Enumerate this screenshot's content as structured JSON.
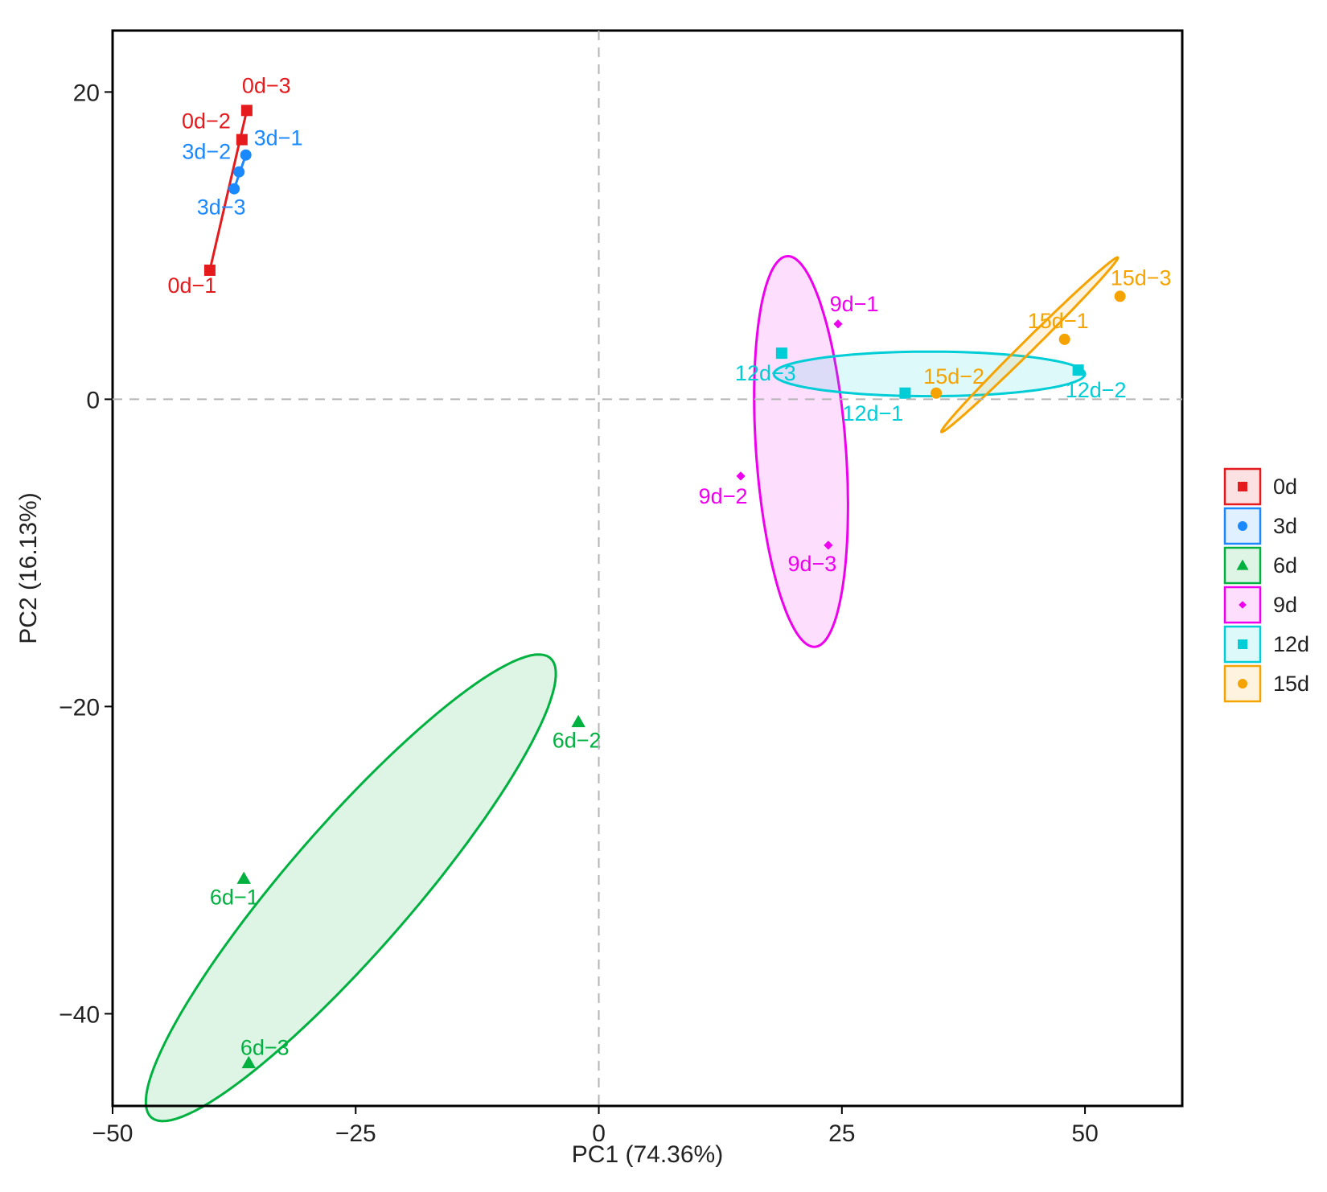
{
  "chart_data": {
    "type": "scatter",
    "title": "",
    "xlabel": "PC1 (74.36%)",
    "ylabel": "PC2 (16.13%)",
    "xlim": [
      -50,
      60
    ],
    "ylim": [
      -46,
      24
    ],
    "x_ticks": [
      -50,
      -25,
      0,
      25,
      50
    ],
    "x_tick_labels": [
      "−50",
      "−25",
      "0",
      "25",
      "50"
    ],
    "y_ticks": [
      -40,
      -20,
      0,
      20
    ],
    "y_tick_labels": [
      "−40",
      "−20",
      "0",
      "20"
    ],
    "grid": false,
    "reference_lines": {
      "x": 0,
      "y": 0,
      "style": "dashed"
    },
    "legend_position": "right",
    "series": [
      {
        "name": "0d",
        "color": "#e41a1c",
        "marker": "square",
        "ellipse": "line",
        "points": [
          {
            "label": "0d−1",
            "x": -40,
            "y": 8.4
          },
          {
            "label": "0d−2",
            "x": -36.7,
            "y": 16.9
          },
          {
            "label": "0d−3",
            "x": -36.2,
            "y": 18.8
          }
        ]
      },
      {
        "name": "3d",
        "color": "#1a88ff",
        "marker": "circle",
        "ellipse": "line",
        "points": [
          {
            "label": "3d−1",
            "x": -36.3,
            "y": 15.9
          },
          {
            "label": "3d−2",
            "x": -37,
            "y": 14.8
          },
          {
            "label": "3d−3",
            "x": -37.5,
            "y": 13.7
          }
        ]
      },
      {
        "name": "6d",
        "color": "#00b140",
        "marker": "triangle",
        "ellipse": "ellipse",
        "points": [
          {
            "label": "6d−1",
            "x": -36.5,
            "y": -31.2
          },
          {
            "label": "6d−2",
            "x": -2.1,
            "y": -21
          },
          {
            "label": "6d−3",
            "x": -36,
            "y": -43.2
          }
        ]
      },
      {
        "name": "9d",
        "color": "#ee00ee",
        "marker": "diamond",
        "ellipse": "ellipse",
        "points": [
          {
            "label": "9d−1",
            "x": 24.6,
            "y": 4.9
          },
          {
            "label": "9d−2",
            "x": 14.6,
            "y": -5
          },
          {
            "label": "9d−3",
            "x": 23.6,
            "y": -9.5
          }
        ]
      },
      {
        "name": "12d",
        "color": "#00cdd6",
        "marker": "square",
        "ellipse": "ellipse",
        "points": [
          {
            "label": "12d−1",
            "x": 31.5,
            "y": 0.4
          },
          {
            "label": "12d−2",
            "x": 49.3,
            "y": 1.9
          },
          {
            "label": "12d−3",
            "x": 18.8,
            "y": 3
          }
        ]
      },
      {
        "name": "15d",
        "color": "#f5a300",
        "marker": "circle",
        "ellipse": "ellipse",
        "points": [
          {
            "label": "15d−1",
            "x": 47.9,
            "y": 3.9
          },
          {
            "label": "15d−2",
            "x": 34.7,
            "y": 0.4
          },
          {
            "label": "15d−3",
            "x": 53.6,
            "y": 6.7
          }
        ]
      }
    ]
  }
}
